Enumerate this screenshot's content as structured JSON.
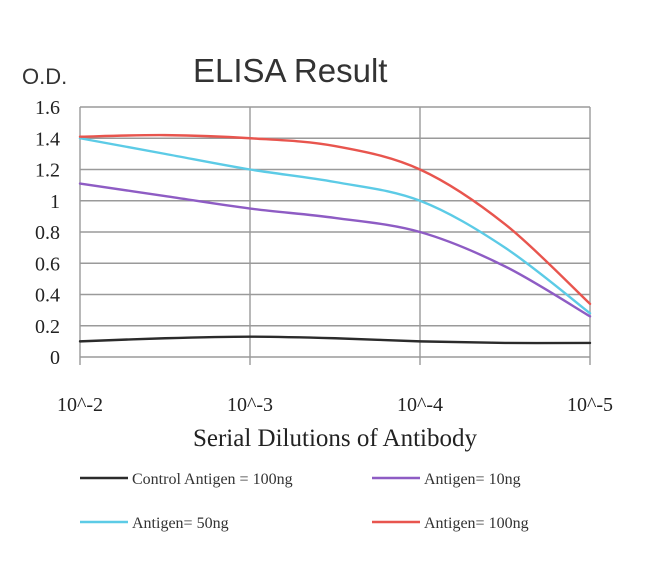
{
  "chart_data": {
    "type": "line",
    "title": "ELISA Result",
    "ylabel": "O.D.",
    "xlabel": "Serial Dilutions of Antibody",
    "x_ticks": [
      "10^-2",
      "10^-3",
      "10^-4",
      "10^-5"
    ],
    "y_ticks": [
      "0",
      "0.2",
      "0.4",
      "0.6",
      "0.8",
      "1",
      "1.2",
      "1.4",
      "1.6"
    ],
    "ylim": [
      0,
      1.6
    ],
    "xlim": [
      0,
      3
    ],
    "grid": true,
    "legend_position": "bottom",
    "series": [
      {
        "name": "Control Antigen = 100ng",
        "color": "#2b2b2b",
        "x": [
          0,
          0.5,
          1,
          1.5,
          2,
          2.5,
          3
        ],
        "values": [
          0.1,
          0.12,
          0.13,
          0.12,
          0.1,
          0.09,
          0.09
        ]
      },
      {
        "name": "Antigen= 10ng",
        "color": "#8e5cc4",
        "x": [
          0,
          0.5,
          1,
          1.5,
          2,
          2.5,
          3
        ],
        "values": [
          1.11,
          1.03,
          0.95,
          0.89,
          0.8,
          0.58,
          0.26
        ]
      },
      {
        "name": "Antigen= 50ng",
        "color": "#5ccbe6",
        "x": [
          0,
          0.5,
          1,
          1.5,
          2,
          2.5,
          3
        ],
        "values": [
          1.4,
          1.3,
          1.2,
          1.12,
          1.0,
          0.7,
          0.28
        ]
      },
      {
        "name": "Antigen= 100ng",
        "color": "#e8554e",
        "x": [
          0,
          0.5,
          1,
          1.5,
          2,
          2.5,
          3
        ],
        "values": [
          1.41,
          1.42,
          1.4,
          1.35,
          1.2,
          0.85,
          0.34
        ]
      }
    ]
  }
}
